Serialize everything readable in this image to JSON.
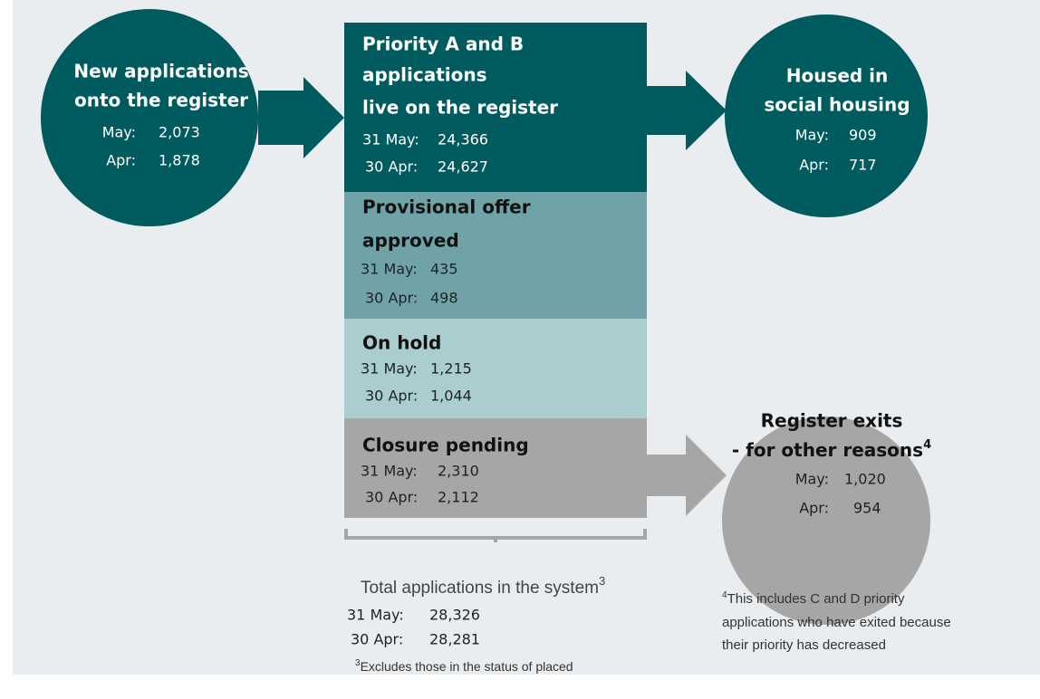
{
  "nodes": [
    {
      "title_lines": [
        "New applications",
        "onto the register"
      ],
      "rows": [
        {
          "label": "May:",
          "value": "2,073"
        },
        {
          "label": "Apr:",
          "value": "1,878"
        }
      ]
    },
    {
      "title_lines": [
        "Priority A and B",
        "applications",
        "live on the register"
      ],
      "rows": [
        {
          "label": "31 May:",
          "value": "24,366"
        },
        {
          "label": "30 Apr:",
          "value": "24,627"
        }
      ]
    },
    {
      "title_lines": [
        "Provisional offer",
        "approved"
      ],
      "rows": [
        {
          "label": "31 May:",
          "value": "435"
        },
        {
          "label": "30 Apr:",
          "value": "498"
        }
      ]
    },
    {
      "title_lines": [
        "On hold"
      ],
      "rows": [
        {
          "label": "31 May:",
          "value": "1,215"
        },
        {
          "label": "30 Apr:",
          "value": "1,044"
        }
      ]
    },
    {
      "title_lines": [
        "Closure pending"
      ],
      "rows": [
        {
          "label": "31 May:",
          "value": "2,310"
        },
        {
          "label": "30 Apr:",
          "value": "2,112"
        }
      ]
    },
    {
      "title_lines": [
        "Housed in",
        "social housing"
      ],
      "rows": [
        {
          "label": "May:",
          "value": "909"
        },
        {
          "label": "Apr:",
          "value": "717"
        }
      ]
    },
    {
      "title_lines": [
        "Register exits",
        "- for other reasons"
      ],
      "title_sup": "4",
      "rows": [
        {
          "label": "May:",
          "value": "1,020"
        },
        {
          "label": "Apr:",
          "value": "954"
        }
      ]
    }
  ],
  "total": {
    "label": "Total applications in the system",
    "sup": "3",
    "rows": [
      {
        "label": "31 May:",
        "value": "28,326"
      },
      {
        "label": "30 Apr:",
        "value": "28,281"
      }
    ]
  },
  "footnotes": [
    {
      "mark": "3",
      "lines": [
        "Excludes those in the status of placed"
      ]
    },
    {
      "mark": "4",
      "lines": [
        "This includes C and D priority",
        "applications who have exited because",
        "their priority has decreased"
      ]
    }
  ]
}
